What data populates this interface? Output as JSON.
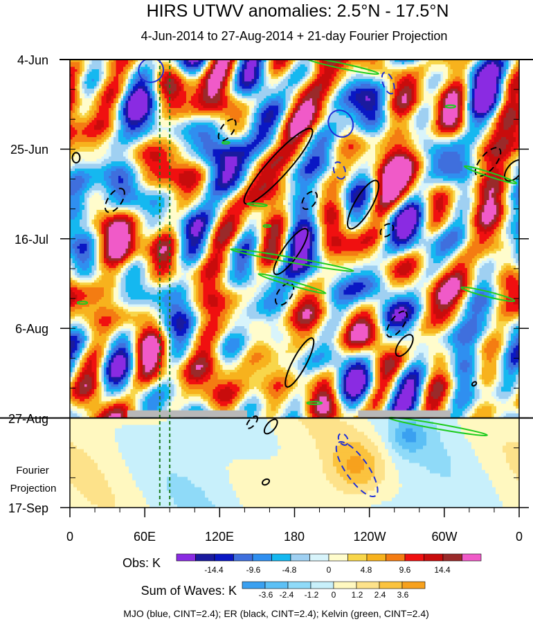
{
  "chart_data": {
    "type": "heatmap",
    "title": "HIRS UTWV anomalies: 2.5°N - 17.5°N",
    "subtitle": "4-Jun-2014 to 27-Aug-2014 + 21-day Fourier Projection",
    "x_ticks": [
      "0",
      "60E",
      "120E",
      "180",
      "120W",
      "60W",
      "0"
    ],
    "x_tick_lon": [
      0,
      60,
      120,
      180,
      240,
      300,
      360
    ],
    "y_ticks": [
      "4-Jun",
      "25-Jun",
      "16-Jul",
      "6-Aug",
      "27-Aug",
      "17-Sep"
    ],
    "y_tick_day": [
      0,
      21,
      42,
      63,
      84,
      105
    ],
    "projection_label_1": "Fourier",
    "projection_label_2": "Projection",
    "colors": {
      "obs": [
        "#8a2be2",
        "#1a1a9e",
        "#0a17c4",
        "#3f6fdd",
        "#2f8ff0",
        "#15b8f0",
        "#9fd0f2",
        "#d8f4fb",
        "#fffccc",
        "#f8d64a",
        "#f7b21d",
        "#f47c12",
        "#f01010",
        "#c80c0c",
        "#9a2a2a",
        "#f05ac8"
      ],
      "sum": [
        "#3aa0f0",
        "#5cc0f5",
        "#8fdaf8",
        "#c8f0fb",
        "#fff8c0",
        "#fde28a",
        "#fbc33e",
        "#f7a11d"
      ],
      "mjo": "#1f2fd8",
      "er": "#000000",
      "kelvin": "#1fcc1f",
      "marker": "#1a7a1a",
      "missing_bar": "#b8b8b8"
    },
    "obs_colorbar": {
      "label": "Obs: K",
      "tick_labels": [
        "-14.4",
        "-9.6",
        "-4.8",
        "0",
        "4.8",
        "9.6",
        "14.4"
      ]
    },
    "sum_colorbar": {
      "label": "Sum of Waves: K",
      "tick_labels": [
        "-3.6",
        "-2.4",
        "-1.2",
        "0",
        "1.2",
        "2.4",
        "3.6"
      ]
    },
    "footer": "MJO (blue, CINT=2.4); ER (black, CINT=2.4); Kelvin (green, CINT=2.4)"
  }
}
